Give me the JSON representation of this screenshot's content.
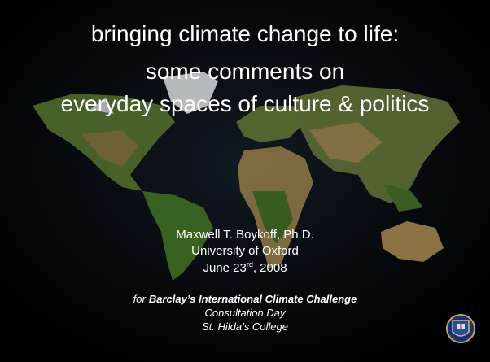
{
  "title": {
    "lines": [
      "bringing climate change to life:",
      "some comments on",
      "everyday spaces of culture & politics"
    ]
  },
  "author": {
    "name": "Maxwell T. Boykoff, Ph.D.",
    "affiliation": "University of Oxford",
    "date": {
      "before": "June 23",
      "sup": "rd",
      "after": ", 2008"
    }
  },
  "occasion": {
    "prefix": "for",
    "event": "Barclay’s International Climate Challenge",
    "lines": [
      "Consultation Day",
      "St. Hilda’s College"
    ]
  }
}
